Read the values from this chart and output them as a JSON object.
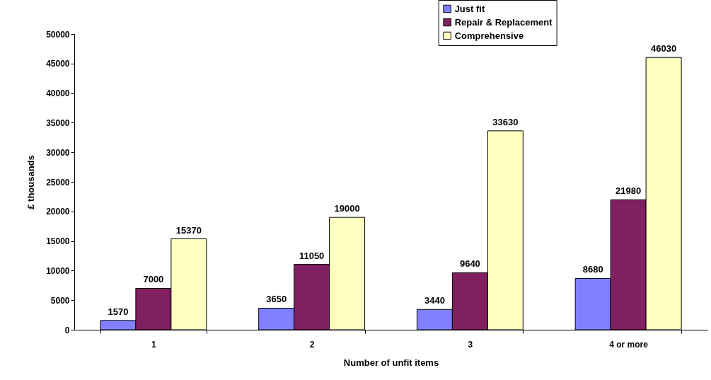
{
  "chart_data": {
    "type": "bar",
    "xlabel": "Number of unfit items",
    "ylabel": "£ thousands",
    "categories": [
      "1",
      "2",
      "3",
      "4 or more"
    ],
    "series": [
      {
        "name": "Just fit",
        "color": "#8080ff",
        "values": [
          1570,
          3650,
          3440,
          8680
        ]
      },
      {
        "name": "Repair & Replacement",
        "color": "#802060",
        "values": [
          7000,
          11050,
          9640,
          21980
        ]
      },
      {
        "name": "Comprehensive",
        "color": "#ffffc0",
        "values": [
          15370,
          19000,
          33630,
          46030
        ]
      }
    ],
    "ylim": [
      0,
      50000
    ],
    "yticks": [
      0,
      5000,
      10000,
      15000,
      20000,
      25000,
      30000,
      35000,
      40000,
      45000,
      50000
    ],
    "data_labels": true,
    "legend": "top right"
  }
}
